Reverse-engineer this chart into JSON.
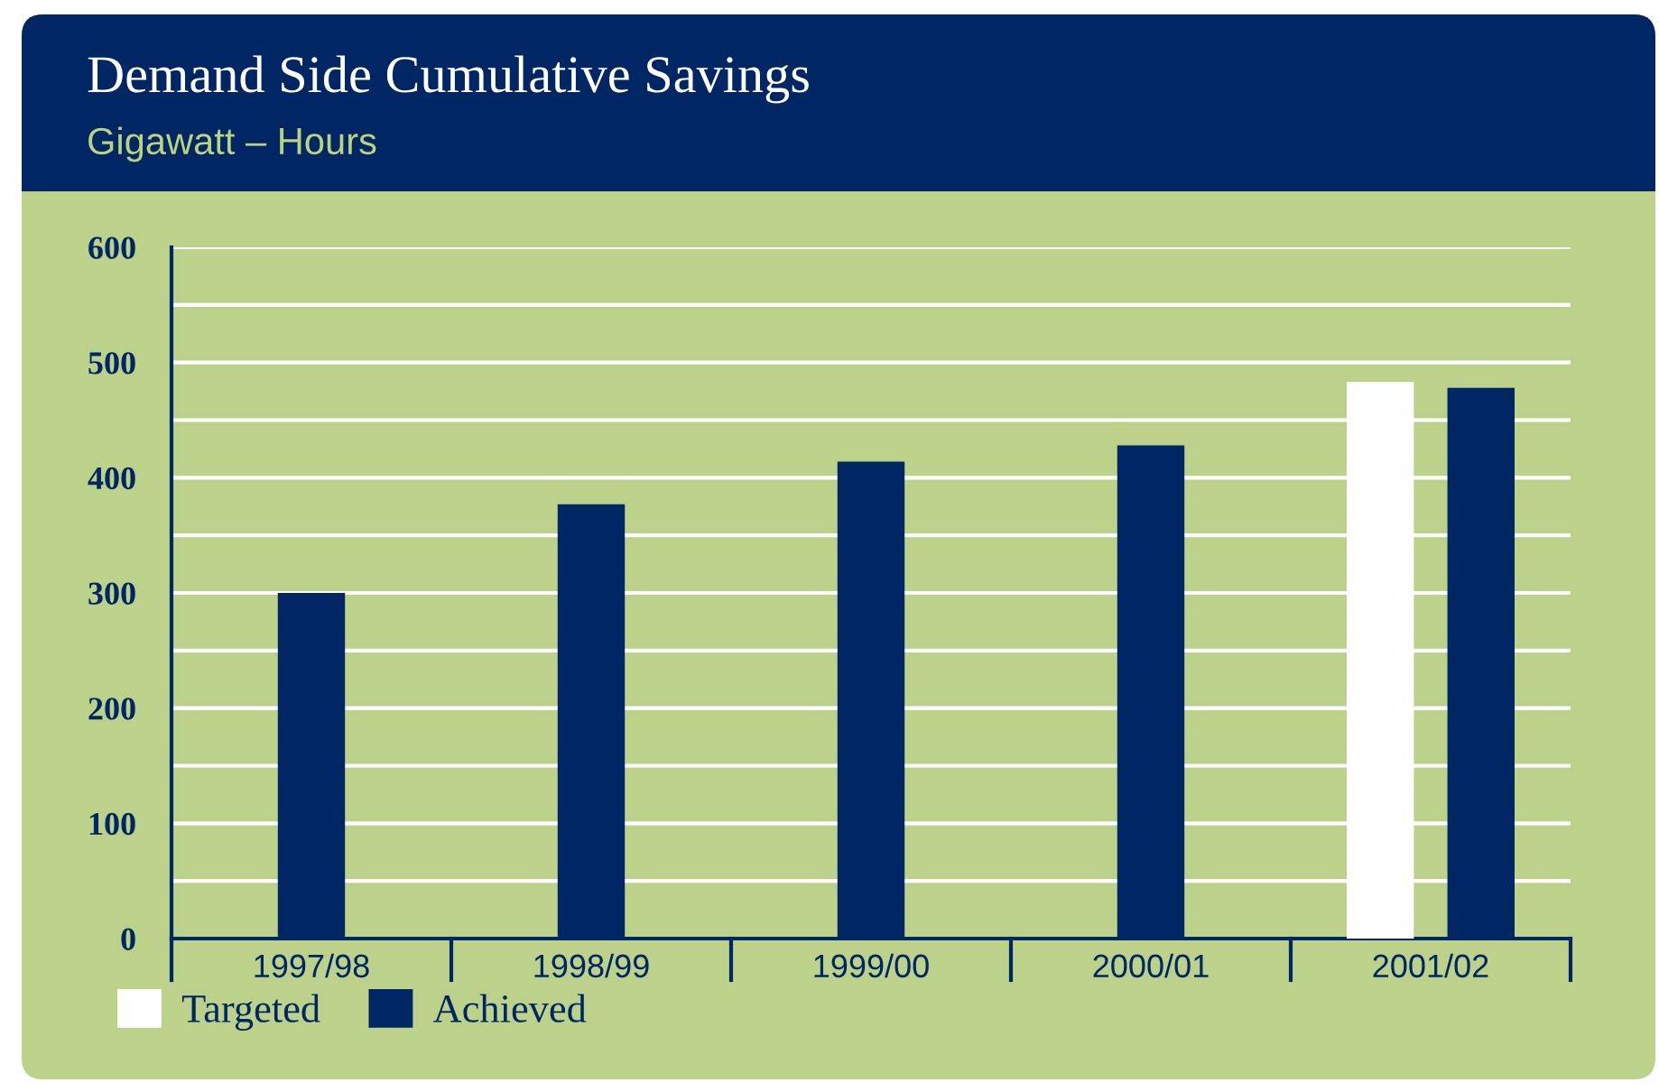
{
  "chart_data": {
    "type": "bar",
    "title": "Demand Side Cumulative Savings",
    "subtitle": "Gigawatt – Hours",
    "categories": [
      "1997/98",
      "1998/99",
      "1999/00",
      "2000/01",
      "2001/02"
    ],
    "series": [
      {
        "name": "Targeted",
        "color": "#ffffff",
        "values": [
          null,
          null,
          null,
          null,
          483
        ]
      },
      {
        "name": "Achieved",
        "color": "#002664",
        "values": [
          300,
          377,
          414,
          428,
          478
        ]
      }
    ],
    "ylim": [
      0,
      600
    ],
    "yticks": [
      0,
      {
        "value": 50,
        "label": null
      },
      100,
      {
        "value": 150,
        "label": null
      },
      200,
      {
        "value": 250,
        "label": null
      },
      300,
      {
        "value": 350,
        "label": null
      },
      400,
      {
        "value": 450,
        "label": null
      },
      500,
      {
        "value": 550,
        "label": null
      },
      600
    ],
    "grid": "y",
    "legend": "bottom left"
  }
}
